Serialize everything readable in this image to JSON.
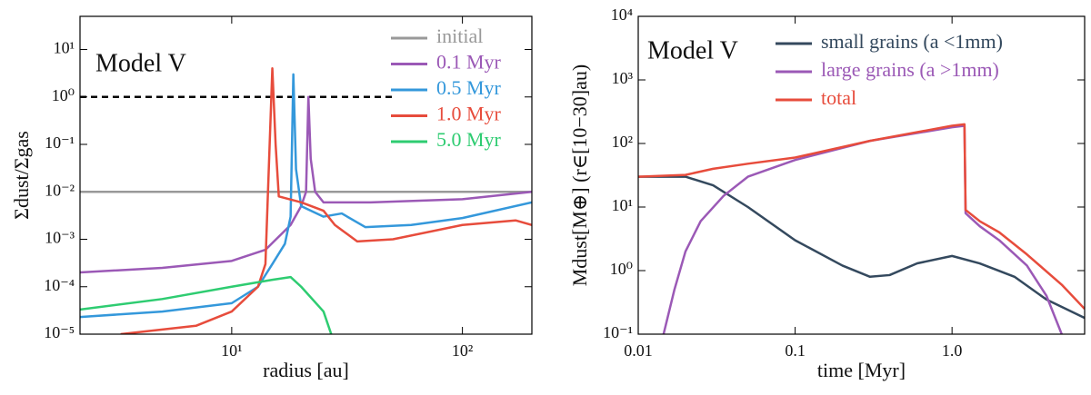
{
  "chart_data": [
    {
      "type": "line",
      "annotation": "Model V",
      "xlabel": "radius [au]",
      "ylabel": "Σdust/Σgas",
      "log_x": true,
      "log_y": true,
      "xlim": [
        2.2,
        200
      ],
      "ylim": [
        1e-05,
        50
      ],
      "xticks": [
        {
          "value": 10,
          "label": "10¹"
        },
        {
          "value": 100,
          "label": "10²"
        }
      ],
      "yticks": [
        {
          "value": 1e-05,
          "label": "10⁻⁵"
        },
        {
          "value": 0.0001,
          "label": "10⁻⁴"
        },
        {
          "value": 0.001,
          "label": "10⁻³"
        },
        {
          "value": 0.01,
          "label": "10⁻²"
        },
        {
          "value": 0.1,
          "label": "10⁻¹"
        },
        {
          "value": 1,
          "label": "10⁰"
        },
        {
          "value": 10,
          "label": "10¹"
        }
      ],
      "reference_line": {
        "value": 1,
        "xlim": [
          2.2,
          50
        ],
        "style": "dashed",
        "color": "#000000"
      },
      "series": [
        {
          "name": "initial",
          "color": "#999999",
          "x": [
            2.2,
            200
          ],
          "values": [
            0.01,
            0.01
          ]
        },
        {
          "name": "0.1 Myr",
          "color": "#9b59b6",
          "x": [
            2.2,
            5,
            10,
            14,
            18,
            20,
            21,
            21.5,
            22,
            23,
            25,
            40,
            100,
            200
          ],
          "values": [
            0.0002,
            0.00025,
            0.00035,
            0.0006,
            0.002,
            0.005,
            0.01,
            1,
            0.05,
            0.01,
            0.006,
            0.006,
            0.007,
            0.01
          ]
        },
        {
          "name": "0.5 Myr",
          "color": "#3498db",
          "x": [
            2.2,
            5,
            10,
            13,
            15,
            17,
            18,
            18.5,
            19,
            20,
            25,
            30,
            38,
            60,
            100,
            200
          ],
          "values": [
            2.3e-05,
            3e-05,
            4.5e-05,
            0.0001,
            0.0003,
            0.0008,
            0.003,
            3,
            0.03,
            0.005,
            0.003,
            0.0035,
            0.0018,
            0.002,
            0.0028,
            0.006
          ]
        },
        {
          "name": "1.0 Myr",
          "color": "#e74c3c",
          "x": [
            3.3,
            7,
            10,
            13,
            14,
            15,
            15.5,
            16,
            20,
            25,
            28,
            35,
            50,
            100,
            170,
            200
          ],
          "values": [
            1e-05,
            1.5e-05,
            3e-05,
            0.0001,
            0.0003,
            4,
            0.1,
            0.008,
            0.006,
            0.004,
            0.002,
            0.0009,
            0.001,
            0.002,
            0.0025,
            0.002
          ]
        },
        {
          "name": "5.0 Myr",
          "color": "#2ecc71",
          "x": [
            2.2,
            5,
            10,
            15,
            18,
            20,
            25,
            27
          ],
          "values": [
            3.3e-05,
            5.5e-05,
            0.0001,
            0.00014,
            0.00016,
            0.0001,
            3e-05,
            1e-05
          ]
        }
      ]
    },
    {
      "type": "line",
      "annotation": "Model V",
      "xlabel": "time [Myr]",
      "ylabel": "Mdust[M⊕] (r∈[10−30]au)",
      "log_x": true,
      "log_y": true,
      "xlim": [
        0.01,
        7
      ],
      "ylim": [
        0.1,
        10000
      ],
      "xticks": [
        0.01,
        0.1,
        {
          "value": 1,
          "label": "1.0"
        }
      ],
      "yticks": [
        {
          "value": 0.1,
          "label": "10⁻¹"
        },
        {
          "value": 1,
          "label": "10⁰"
        },
        {
          "value": 10,
          "label": "10¹"
        },
        {
          "value": 100,
          "label": "10²"
        },
        {
          "value": 1000,
          "label": "10³"
        },
        {
          "value": 10000,
          "label": "10⁴"
        }
      ],
      "series": [
        {
          "name": "small grains (a <1mm)",
          "color": "#34495e",
          "x": [
            0.01,
            0.02,
            0.03,
            0.05,
            0.1,
            0.2,
            0.3,
            0.4,
            0.6,
            1,
            1.5,
            2.5,
            4,
            7
          ],
          "values": [
            30,
            30,
            22,
            10,
            3,
            1.2,
            0.8,
            0.85,
            1.3,
            1.7,
            1.3,
            0.8,
            0.35,
            0.18
          ]
        },
        {
          "name": "large grains (a >1mm)",
          "color": "#9b59b6",
          "x": [
            0.0145,
            0.017,
            0.02,
            0.025,
            0.035,
            0.05,
            0.1,
            0.3,
            1,
            1.2,
            1.22,
            1.5,
            2,
            3,
            4,
            5
          ],
          "values": [
            0.1,
            0.5,
            2,
            6,
            15,
            30,
            55,
            110,
            180,
            190,
            8,
            5,
            3,
            1.2,
            0.4,
            0.1
          ]
        },
        {
          "name": "total",
          "color": "#e74c3c",
          "x": [
            0.01,
            0.02,
            0.03,
            0.05,
            0.1,
            0.3,
            1,
            1.2,
            1.22,
            1.5,
            2,
            3,
            5,
            7
          ],
          "values": [
            30,
            32,
            40,
            48,
            60,
            110,
            190,
            200,
            9,
            6,
            4,
            1.8,
            0.6,
            0.25
          ]
        }
      ]
    }
  ]
}
